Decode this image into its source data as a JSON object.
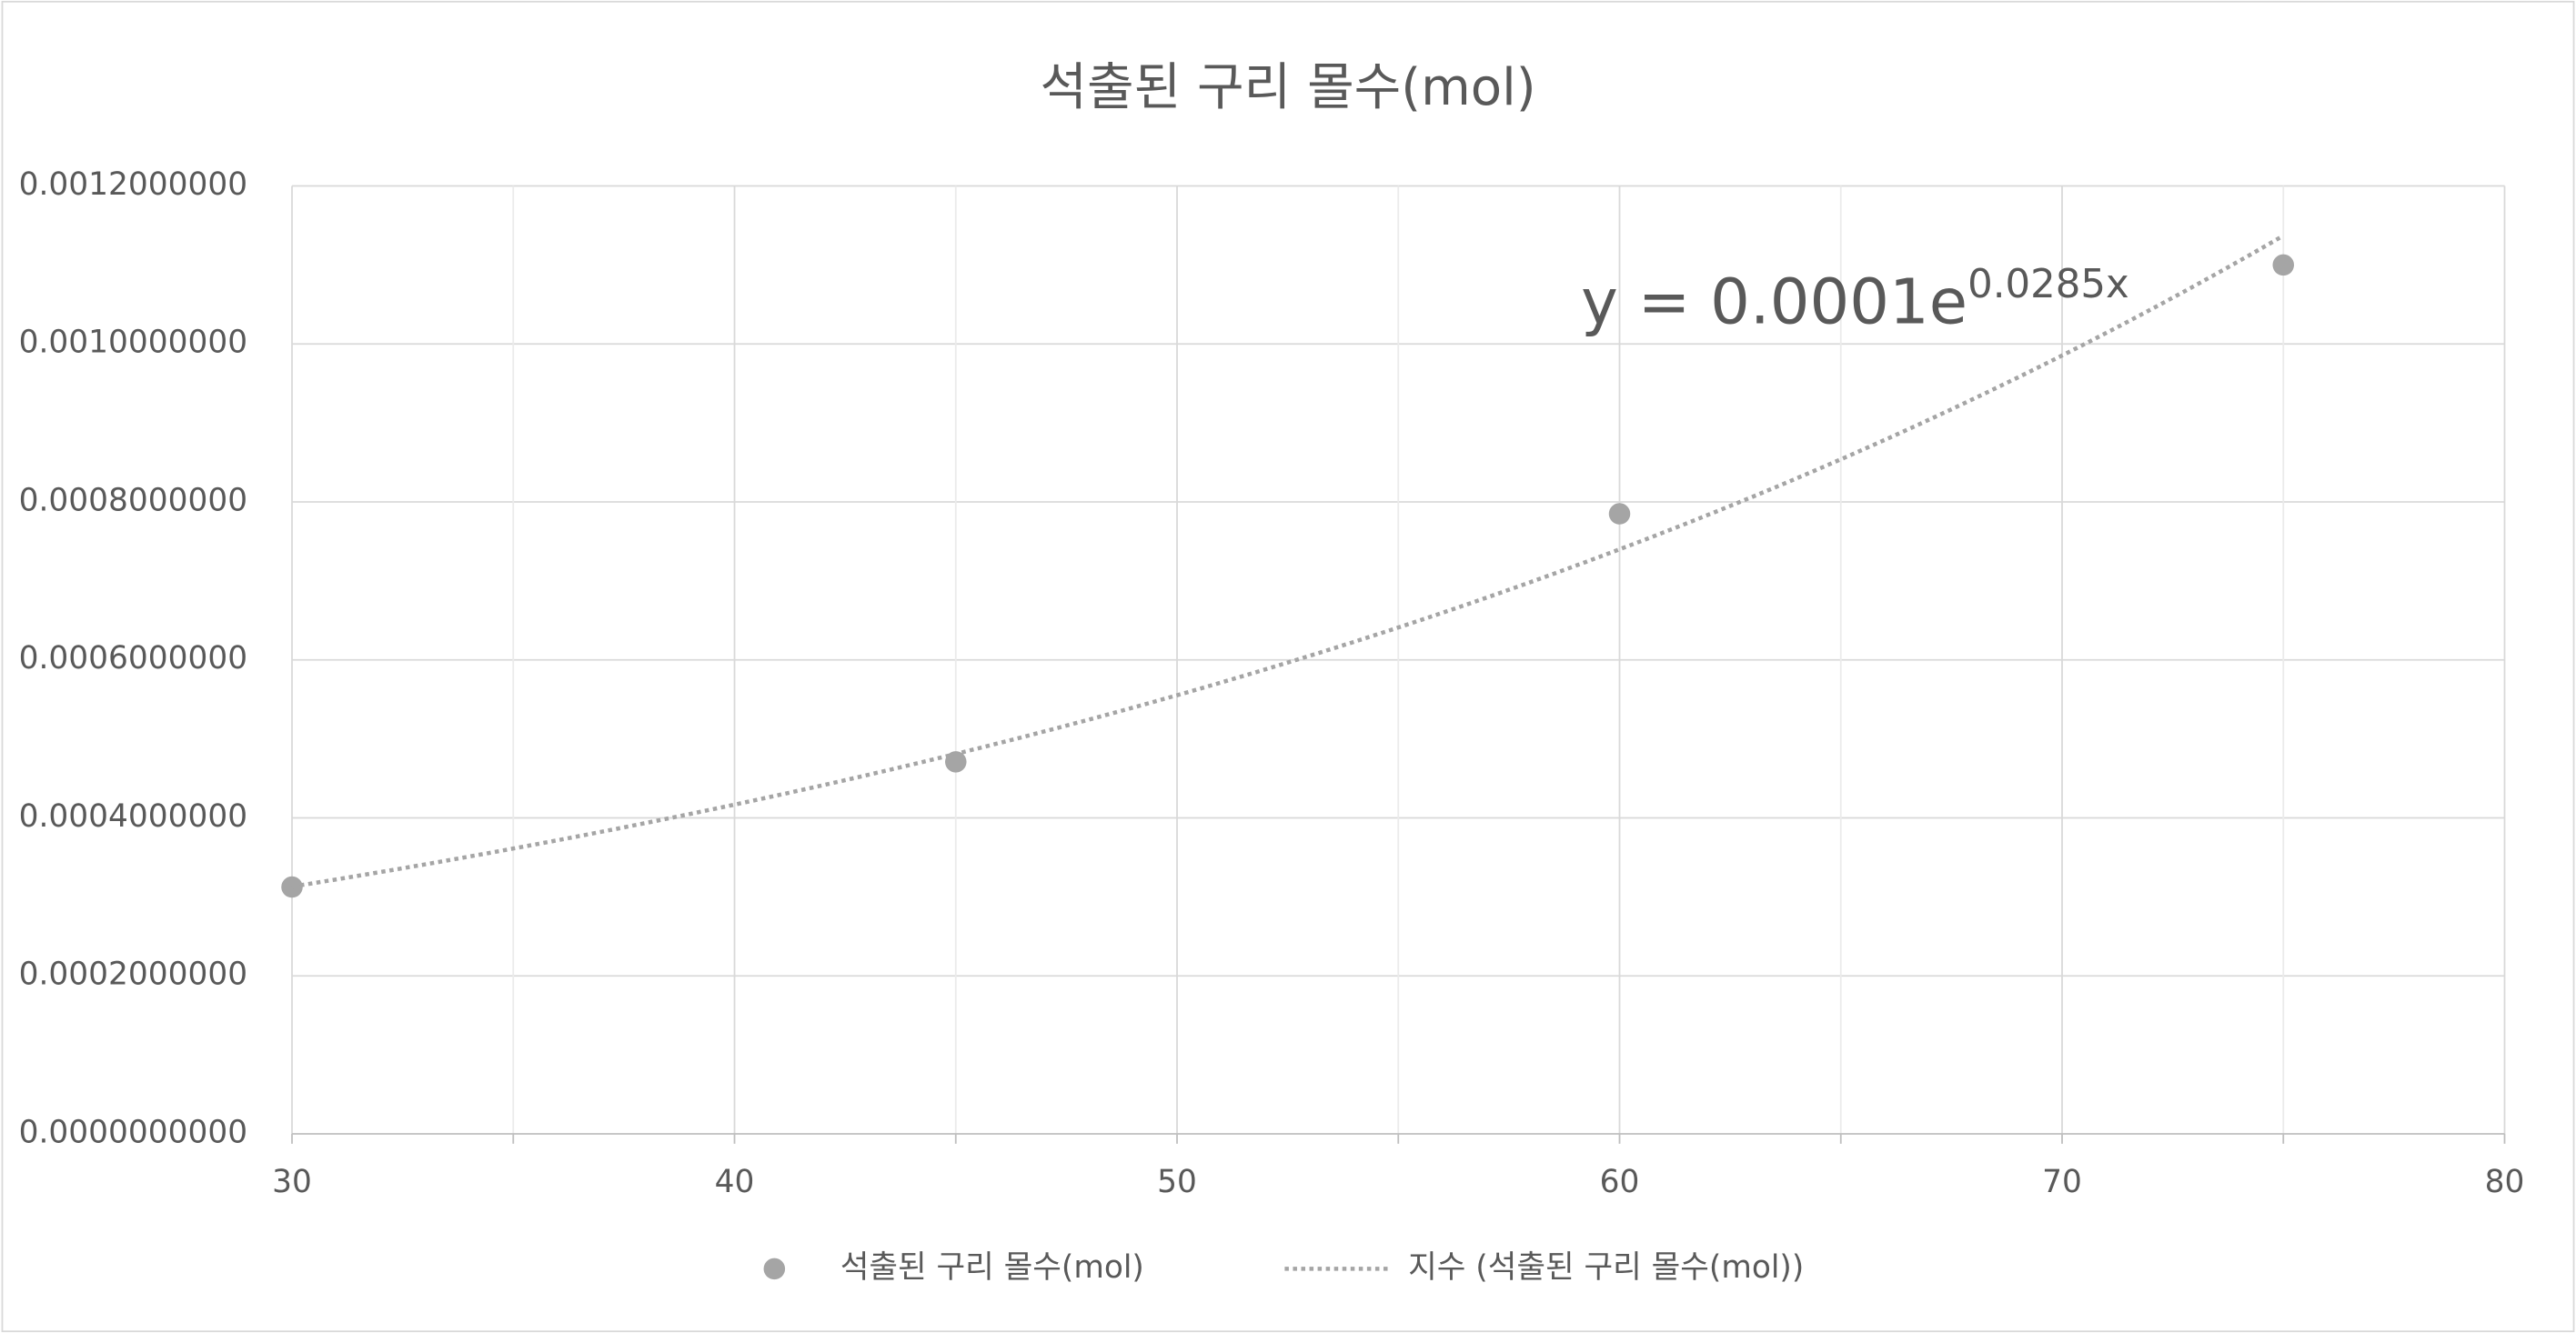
{
  "chart_data": {
    "type": "scatter",
    "title": "석출된 구리 몰수(mol)",
    "series": [
      {
        "name": "석출된 구리 몰수(mol)",
        "color": "#a5a5a5",
        "x": [
          30,
          45,
          60,
          75
        ],
        "values": [
          0.0003125,
          0.000471,
          0.000785,
          0.0011
        ]
      },
      {
        "name": "지수 (석출된 구리 몰수(mol))",
        "color": "#a5a5a5",
        "kind": "trendline",
        "x": [
          30,
          45,
          60,
          75
        ],
        "values": [
          0.000313,
          0.000481,
          0.00074,
          0.001137
        ]
      }
    ],
    "annotation": {
      "text": "y = 0.0001e",
      "superscript": "0.0285x"
    },
    "xlim": [
      30,
      80
    ],
    "xticks": [
      30,
      40,
      50,
      60,
      70,
      80
    ],
    "xminorticks": [
      35,
      45,
      55,
      65,
      75
    ],
    "ylim": [
      0,
      0.0012
    ],
    "yticks": [
      {
        "value": 0,
        "label": "0.0000000000"
      },
      {
        "value": 0.0002,
        "label": "0.0002000000"
      },
      {
        "value": 0.0004,
        "label": "0.0004000000"
      },
      {
        "value": 0.0006,
        "label": "0.0006000000"
      },
      {
        "value": 0.0008,
        "label": "0.0008000000"
      },
      {
        "value": 0.001,
        "label": "0.0010000000"
      },
      {
        "value": 0.0012,
        "label": "0.0012000000"
      }
    ],
    "grid": true,
    "legend": "bottom"
  }
}
